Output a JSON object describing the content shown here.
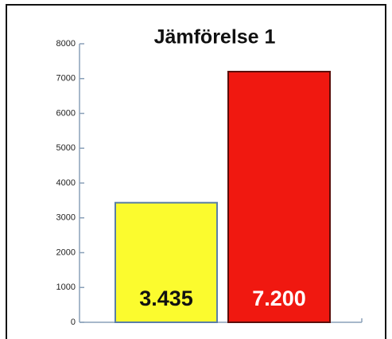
{
  "chart_data": {
    "type": "bar",
    "title": "Jämförelse 1",
    "categories": [
      null,
      null
    ],
    "values": [
      3435,
      7200
    ],
    "value_labels": [
      "3.435",
      "7.200"
    ],
    "colors": [
      "#fbfb2e",
      "#f01810"
    ],
    "edge_colors": [
      "#5a7fa6",
      "#5a0e0a"
    ],
    "label_colors": [
      "#111111",
      "#ffffff"
    ],
    "ylim": [
      0,
      8000
    ],
    "yticks": [
      0,
      1000,
      2000,
      3000,
      4000,
      5000,
      6000,
      7000,
      8000
    ],
    "grid": false
  }
}
